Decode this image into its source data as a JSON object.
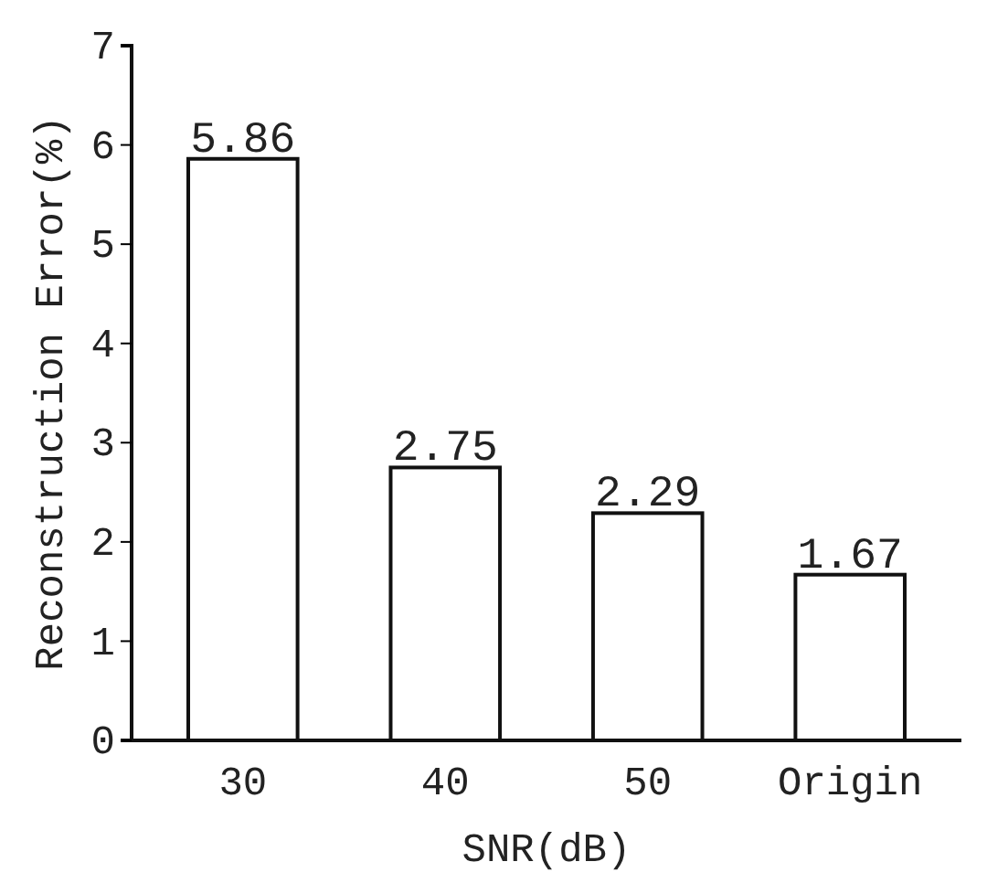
{
  "chart_data": {
    "type": "bar",
    "xlabel": "SNR(dB)",
    "ylabel": "Reconstruction Error(%)",
    "categories": [
      "30",
      "40",
      "50",
      "Origin"
    ],
    "values": [
      5.86,
      2.75,
      2.29,
      1.67
    ],
    "color": "#ffffff",
    "ylim": [
      0,
      7
    ],
    "yticks": [
      0,
      1,
      2,
      3,
      4,
      5,
      6,
      7
    ],
    "data_labels": true
  }
}
